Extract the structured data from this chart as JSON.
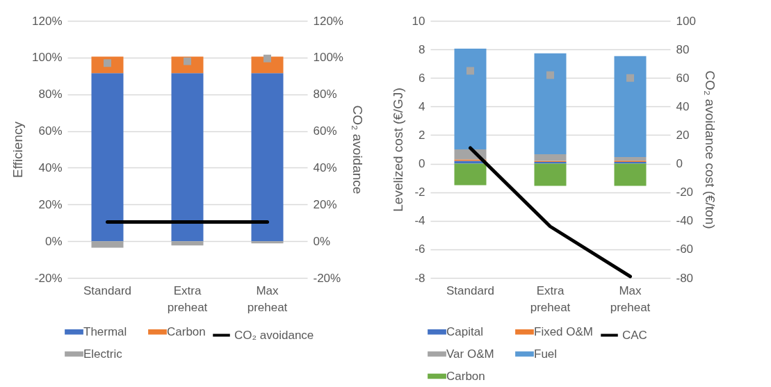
{
  "chart_data": [
    {
      "type": "bar",
      "stacked": true,
      "categories": [
        "Standard",
        "Extra preheat",
        "Max preheat"
      ],
      "ylabel": "Efficiency",
      "y2label": "CO₂ avoidance",
      "ylim": [
        -20,
        120
      ],
      "yticks": [
        {
          "value": -20,
          "label": "-20%"
        },
        {
          "value": 0,
          "label": "0%"
        },
        {
          "value": 20,
          "label": "20%"
        },
        {
          "value": 40,
          "label": "40%"
        },
        {
          "value": 60,
          "label": "60%"
        },
        {
          "value": 80,
          "label": "80%"
        },
        {
          "value": 100,
          "label": "100%"
        },
        {
          "value": 120,
          "label": "120%"
        }
      ],
      "y2lim": [
        -20,
        120
      ],
      "y2ticks": [
        {
          "value": -20,
          "label": "-20%"
        },
        {
          "value": 0,
          "label": "0%"
        },
        {
          "value": 20,
          "label": "20%"
        },
        {
          "value": 40,
          "label": "40%"
        },
        {
          "value": 60,
          "label": "60%"
        },
        {
          "value": 80,
          "label": "80%"
        },
        {
          "value": 100,
          "label": "100%"
        },
        {
          "value": 120,
          "label": "120%"
        }
      ],
      "grid": "y",
      "legend": "bottom",
      "series": [
        {
          "name": "Thermal",
          "color": "#4472c4",
          "values": [
            91.5,
            91.5,
            91.5
          ]
        },
        {
          "name": "Carbon",
          "color": "#ed7d31",
          "values": [
            9,
            9,
            9
          ]
        },
        {
          "name": "Electric",
          "color": "#a5a5a5",
          "values": [
            -3.5,
            -2.3,
            -1.2
          ]
        },
        {
          "type": "scatter",
          "marker": "square",
          "color": "#a5a5a5",
          "values": [
            97,
            98,
            99.5
          ]
        },
        {
          "name": "CO₂ avoidance",
          "type": "line",
          "axis": "y2",
          "color": "#000000",
          "values": [
            10.5,
            10.5,
            10.5
          ]
        }
      ]
    },
    {
      "type": "bar",
      "stacked": true,
      "categories": [
        "Standard",
        "Extra preheat",
        "Max preheat"
      ],
      "ylabel": "Levelized cost (€/GJ)",
      "y2label": "CO₂ avoidance cost (€/ton)",
      "ylim": [
        -8,
        10
      ],
      "yticks": [
        -8,
        -6,
        -4,
        -2,
        0,
        2,
        4,
        6,
        8,
        10
      ],
      "y2lim": [
        -80,
        100
      ],
      "y2ticks": [
        -80,
        -60,
        -40,
        -20,
        0,
        20,
        40,
        60,
        80,
        100
      ],
      "grid": "y",
      "legend": "bottom",
      "series": [
        {
          "name": "Capital",
          "color": "#4472c4",
          "values": [
            0.2,
            0.13,
            0.13
          ]
        },
        {
          "name": "Fixed O&M",
          "color": "#ed7d31",
          "values": [
            0.1,
            0.07,
            0.08
          ]
        },
        {
          "name": "Var O&M",
          "color": "#a5a5a5",
          "values": [
            0.7,
            0.46,
            0.26
          ]
        },
        {
          "name": "Fuel",
          "color": "#5b9bd5",
          "values": [
            7.05,
            7.07,
            7.06
          ]
        },
        {
          "name": "Carbon",
          "color": "#70ad47",
          "values": [
            -1.5,
            -1.55,
            -1.55
          ]
        },
        {
          "type": "scatter",
          "marker": "square",
          "color": "#a5a5a5",
          "values": [
            6.5,
            6.2,
            6.0
          ]
        },
        {
          "name": "CAC",
          "type": "line",
          "axis": "y2",
          "color": "#000000",
          "values": [
            11,
            -44,
            -79
          ]
        }
      ]
    }
  ]
}
